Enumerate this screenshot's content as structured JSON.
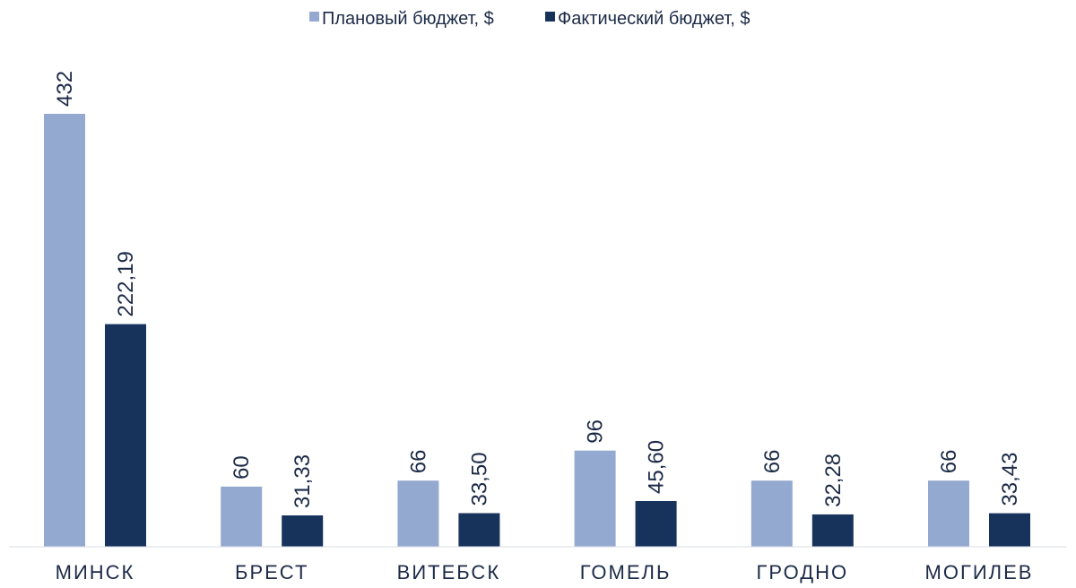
{
  "chart_data": {
    "type": "bar",
    "categories": [
      "МИНСК",
      "БРЕСТ",
      "ВИТЕБСК",
      "ГОМЕЛЬ",
      "ГРОДНО",
      "МОГИЛЕВ"
    ],
    "series": [
      {
        "name": "Плановый бюджет, $",
        "color": "#94a9d0",
        "values": [
          432,
          60,
          66,
          96,
          66,
          66
        ],
        "labels": [
          "432",
          "60",
          "66",
          "96",
          "66",
          "66"
        ]
      },
      {
        "name": "Фактический бюджет, $",
        "color": "#17335c",
        "values": [
          222.19,
          31.33,
          33.5,
          45.6,
          32.28,
          33.43
        ],
        "labels": [
          "222,19",
          "31,33",
          "33,50",
          "45,60",
          "32,28",
          "33,43"
        ]
      }
    ],
    "ylim": [
      0,
      432
    ],
    "legend": "top-center",
    "grid": false
  }
}
